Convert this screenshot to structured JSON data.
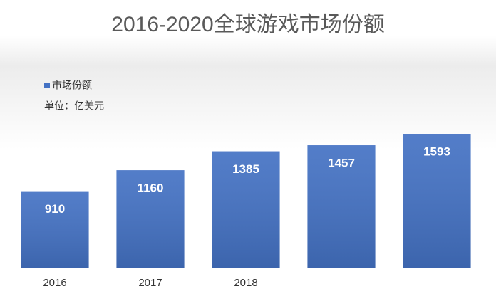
{
  "chart_data": {
    "type": "bar",
    "title": "2016-2020全球游戏市场份额",
    "subtitle": "单位：亿美元",
    "categories": [
      "2016",
      "2017",
      "2018",
      null,
      null
    ],
    "series": [
      {
        "name": "市场份额",
        "color": "#4472c4",
        "values": [
          910,
          1160,
          1385,
          1457,
          1593
        ]
      }
    ],
    "legend": "top-left"
  }
}
